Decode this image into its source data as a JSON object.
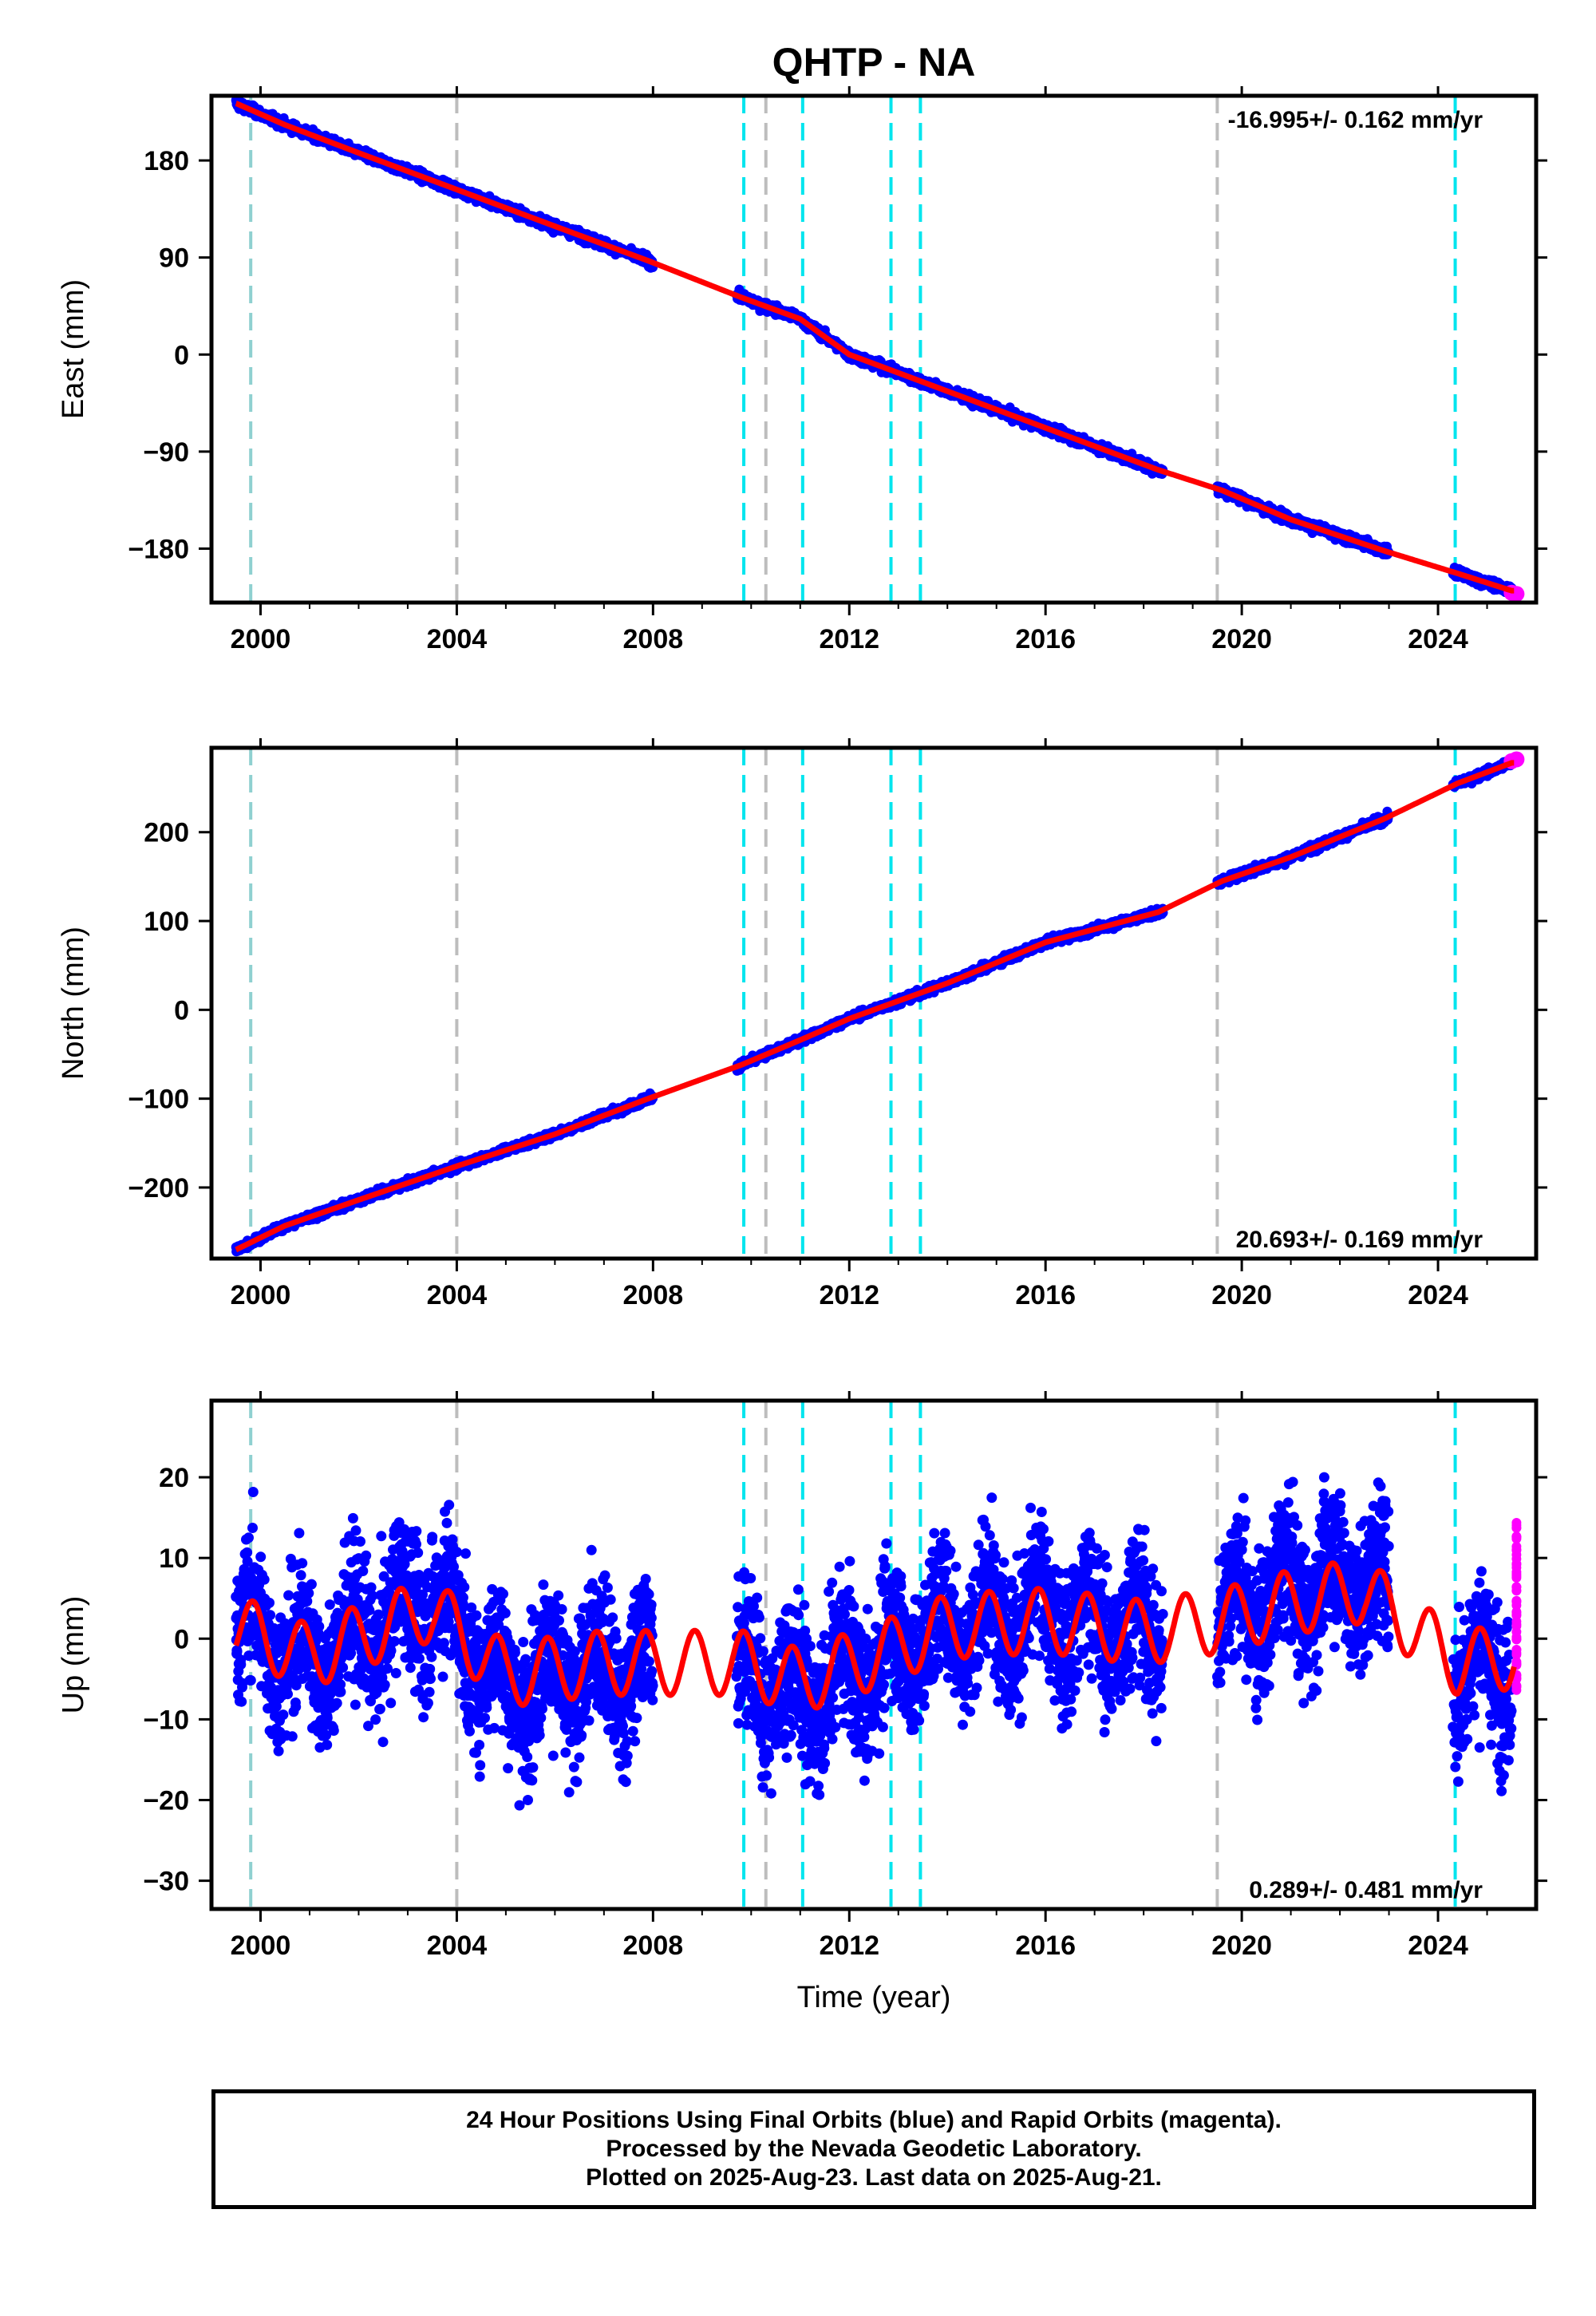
{
  "title": "QHTP - NA",
  "xlabel": "Time (year)",
  "footer": {
    "line1": "24 Hour Positions Using Final Orbits (blue) and Rapid Orbits (magenta).",
    "line2": "Processed by the Nevada Geodetic Laboratory.",
    "line3": "Plotted on 2025-Aug-23. Last data on 2025-Aug-21."
  },
  "colors": {
    "final_orbits": "#0000ff",
    "rapid_orbits": "#ff00ff",
    "model": "#ff0000",
    "equipment_change": "#00e5ee",
    "earthquake": "#bdbdbd",
    "first_marker": "#8fd0d0"
  },
  "chart_data": [
    {
      "type": "scatter",
      "ylabel": "East (mm)",
      "xlim": [
        1999.0,
        2026.0
      ],
      "ylim": [
        -230,
        240
      ],
      "x_ticks": [
        "2000",
        "2004",
        "2008",
        "2012",
        "2016",
        "2020",
        "2024"
      ],
      "y_ticks": [
        180,
        90,
        0,
        -90,
        -180
      ],
      "rate_label": "-16.995+/- 0.162 mm/yr",
      "rate_position": "top-right",
      "trend": {
        "slope": -16.995,
        "value_at_2012": 0
      },
      "gaps": [
        [
          2008.0,
          2009.7
        ],
        [
          2018.4,
          2019.5
        ],
        [
          2023.0,
          2024.3
        ]
      ],
      "series": [
        {
          "name": "Final Orbits",
          "color": "blue",
          "x": [
            1999.5,
            2000.5,
            2002.0,
            2004.0,
            2006.0,
            2007.9,
            2009.8,
            2011.0,
            2012.0,
            2014.0,
            2016.0,
            2018.3,
            2019.6,
            2021.0,
            2022.9,
            2024.4,
            2025.5
          ],
          "y": [
            233,
            213,
            187,
            153,
            119,
            87,
            53,
            33,
            0,
            -34,
            -68,
            -107,
            -126,
            -153,
            -182,
            -203,
            -219
          ]
        },
        {
          "name": "Rapid Orbits",
          "color": "magenta",
          "x": [
            2025.5,
            2025.6
          ],
          "y": [
            -221,
            -222
          ]
        }
      ]
    },
    {
      "type": "scatter",
      "ylabel": "North (mm)",
      "xlim": [
        1999.0,
        2026.0
      ],
      "ylim": [
        -280,
        295
      ],
      "x_ticks": [
        "2000",
        "2004",
        "2008",
        "2012",
        "2016",
        "2020",
        "2024"
      ],
      "y_ticks": [
        200,
        100,
        0,
        -100,
        -200
      ],
      "rate_label": "20.693+/- 0.169 mm/yr",
      "rate_position": "bottom-right",
      "trend": {
        "slope": 20.693,
        "value_at_2012": 0
      },
      "gaps": [
        [
          2008.0,
          2009.7
        ],
        [
          2018.4,
          2019.5
        ],
        [
          2023.0,
          2024.3
        ]
      ],
      "series": [
        {
          "name": "Final Orbits",
          "color": "blue",
          "x": [
            1999.5,
            2000.5,
            2002.0,
            2004.0,
            2006.0,
            2007.9,
            2009.8,
            2011.0,
            2012.0,
            2014.0,
            2016.0,
            2018.3,
            2019.6,
            2021.0,
            2022.9,
            2024.4,
            2025.5
          ],
          "y": [
            -270,
            -243,
            -214,
            -176,
            -140,
            -100,
            -62,
            -34,
            -10,
            30,
            76,
            110,
            145,
            172,
            215,
            255,
            278
          ]
        },
        {
          "name": "Rapid Orbits",
          "color": "magenta",
          "x": [
            2025.5,
            2025.6
          ],
          "y": [
            280,
            282
          ]
        }
      ]
    },
    {
      "type": "scatter",
      "ylabel": "Up (mm)",
      "xlim": [
        1999.0,
        2026.0
      ],
      "ylim": [
        -33.5,
        29.5
      ],
      "x_ticks": [
        "2000",
        "2004",
        "2008",
        "2012",
        "2016",
        "2020",
        "2024"
      ],
      "y_ticks": [
        20,
        10,
        0,
        -10,
        -20,
        -30
      ],
      "rate_label": "0.289+/- 0.481 mm/yr",
      "rate_position": "bottom-right",
      "trend": {
        "slope": 0.289,
        "value_at_2012": 0
      },
      "seasonal_amplitude_mm": 4,
      "gaps": [
        [
          2008.0,
          2009.7
        ],
        [
          2018.4,
          2019.5
        ],
        [
          2023.0,
          2024.3
        ]
      ],
      "series": [
        {
          "name": "Final Orbits",
          "color": "blue",
          "x": [
            1999.5,
            2001.0,
            2003.5,
            2005.0,
            2007.0,
            2009.8,
            2011.0,
            2012.5,
            2014.0,
            2016.0,
            2018.0,
            2019.6,
            2021.0,
            2022.5,
            2024.4,
            2025.5
          ],
          "y": [
            2,
            -3,
            5,
            -6,
            -4,
            -4,
            -7,
            -3,
            2,
            3,
            1,
            3,
            6,
            8,
            -4,
            -3
          ]
        },
        {
          "name": "Rapid Orbits",
          "color": "magenta",
          "x": [
            2025.55,
            2025.6,
            2025.65,
            2025.7
          ],
          "y": [
            14,
            8,
            2,
            -6
          ]
        }
      ]
    }
  ],
  "event_lines": [
    {
      "year": 1999.8,
      "kind": "first_marker"
    },
    {
      "year": 2004.0,
      "kind": "earthquake"
    },
    {
      "year": 2009.85,
      "kind": "equipment_change"
    },
    {
      "year": 2010.3,
      "kind": "earthquake"
    },
    {
      "year": 2011.05,
      "kind": "equipment_change"
    },
    {
      "year": 2012.85,
      "kind": "equipment_change"
    },
    {
      "year": 2013.45,
      "kind": "equipment_change"
    },
    {
      "year": 2019.5,
      "kind": "earthquake"
    },
    {
      "year": 2024.35,
      "kind": "equipment_change"
    }
  ]
}
